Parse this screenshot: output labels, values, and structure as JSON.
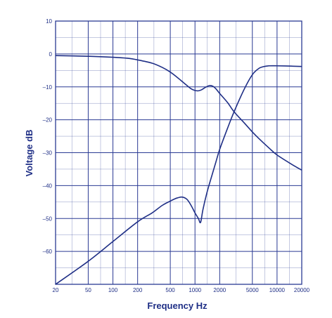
{
  "colors": {
    "ink": "#1f2f86",
    "grid": "#2a3a93",
    "background": "#ffffff"
  },
  "chart_data": {
    "type": "line",
    "title": "",
    "xlabel": "Frequency Hz",
    "ylabel": "Voltage dB",
    "x_scale": "log",
    "xlim": [
      20,
      20000
    ],
    "ylim": [
      -70,
      10
    ],
    "grid": true,
    "x_major_ticks": [
      20,
      50,
      100,
      200,
      500,
      1000,
      2000,
      5000,
      10000,
      20000
    ],
    "x_tick_labels": [
      "20",
      "50",
      "100",
      "200",
      "500",
      "1000",
      "2000",
      "5000",
      "10000",
      "20000"
    ],
    "y_ticks": [
      10,
      0,
      -10,
      -20,
      -30,
      -40,
      -50,
      -60
    ],
    "y_tick_labels": [
      "10",
      "0",
      "–10",
      "–20",
      "–30",
      "–40",
      "–50",
      "–60"
    ],
    "series": [
      {
        "x": [
          20,
          50,
          100,
          150,
          200,
          300,
          400,
          500,
          600,
          700,
          800,
          900,
          1000,
          1100,
          1200,
          1350,
          1500,
          1650,
          1800,
          2000,
          2500,
          3000,
          4000,
          5000,
          6000,
          8000,
          10000,
          15000,
          20000
        ],
        "y": [
          -0.5,
          -0.7,
          -1.0,
          -1.3,
          -1.8,
          -2.8,
          -4.1,
          -5.5,
          -7.0,
          -8.4,
          -9.6,
          -10.6,
          -11.1,
          -11.2,
          -10.9,
          -10.1,
          -9.6,
          -9.8,
          -10.6,
          -12.0,
          -14.8,
          -17.6,
          -21.0,
          -23.7,
          -25.7,
          -28.6,
          -30.7,
          -33.5,
          -35.3
        ]
      },
      {
        "x": [
          20,
          50,
          100,
          200,
          300,
          400,
          500,
          600,
          700,
          800,
          900,
          1000,
          1100,
          1170,
          1250,
          1400,
          1600,
          1800,
          2000,
          2500,
          3000,
          4000,
          5000,
          6000,
          7000,
          8000,
          10000,
          15000,
          20000
        ],
        "y": [
          -70,
          -63,
          -57,
          -51,
          -48.3,
          -46.0,
          -44.7,
          -43.8,
          -43.5,
          -44.2,
          -46.1,
          -48.3,
          -50.0,
          -51.2,
          -47.3,
          -42.1,
          -37.1,
          -32.8,
          -29.0,
          -22.5,
          -17.5,
          -10.6,
          -6.3,
          -4.4,
          -3.8,
          -3.6,
          -3.6,
          -3.7,
          -3.8
        ]
      }
    ]
  }
}
